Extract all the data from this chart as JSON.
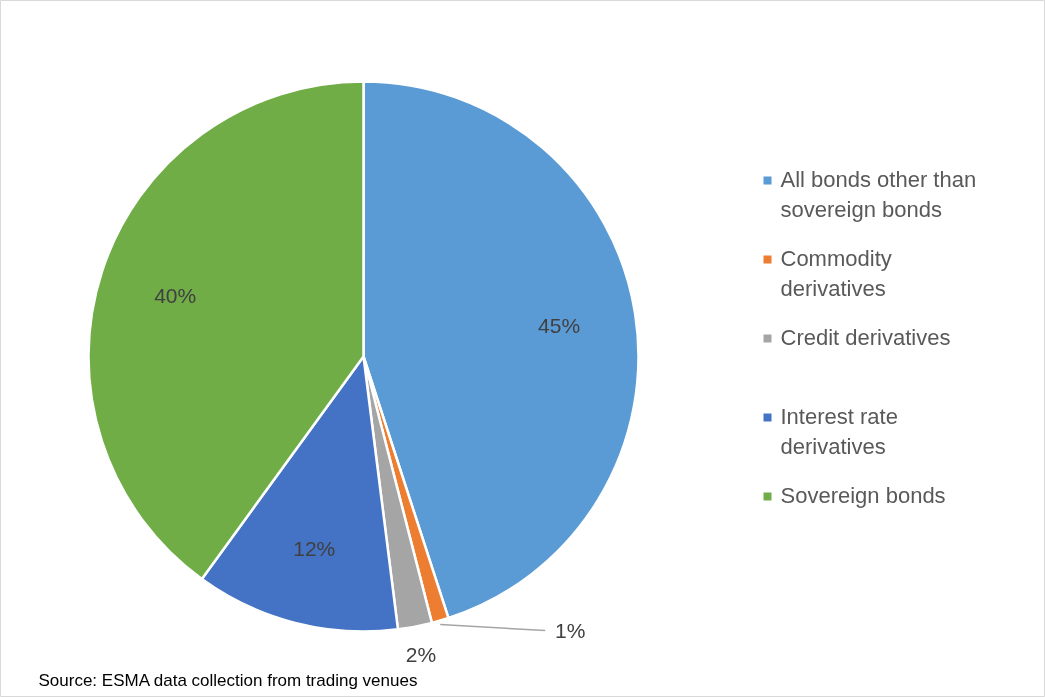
{
  "chart_data": {
    "type": "pie",
    "categories": [
      "All bonds other than sovereign bonds",
      "Commodity derivatives",
      "Credit derivatives",
      "Interest rate derivatives",
      "Sovereign bonds"
    ],
    "values": [
      45,
      1,
      2,
      12,
      40
    ],
    "value_labels": [
      "45%",
      "1%",
      "2%",
      "12%",
      "40%"
    ],
    "colors": [
      "#5b9bd5",
      "#ed7d31",
      "#a5a5a5",
      "#4472c4",
      "#70ad47"
    ],
    "legend": "right",
    "annotations": [
      "Source: ESMA data collection from trading venues"
    ]
  }
}
